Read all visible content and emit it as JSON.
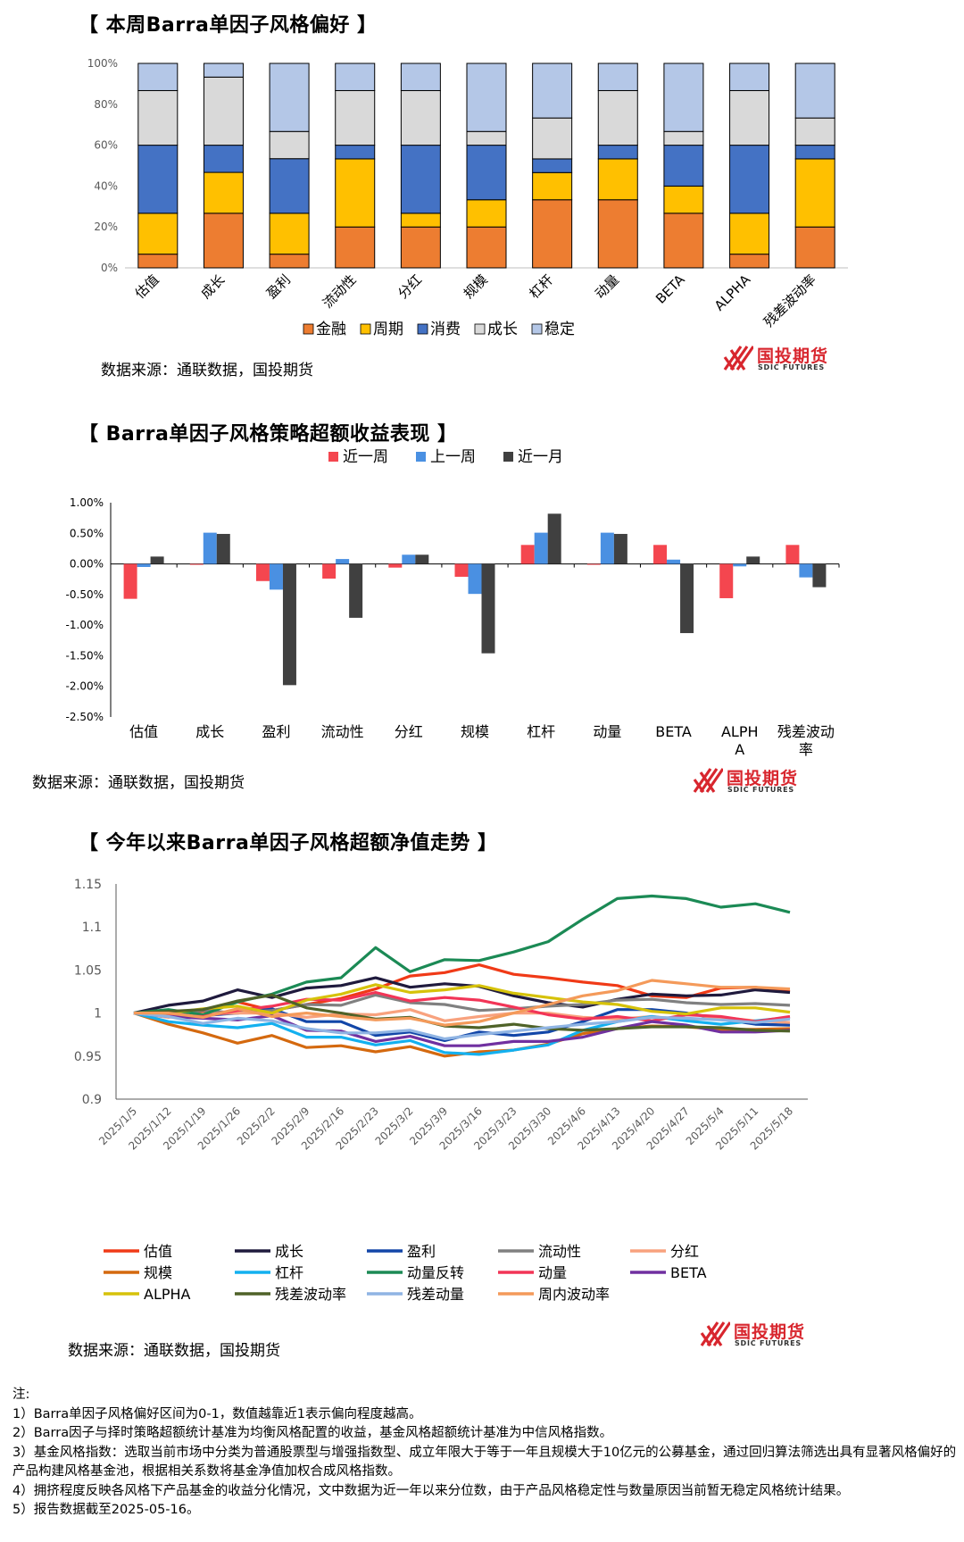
{
  "chart1": {
    "title": "【 本周Barra单因子风格偏好 】",
    "source": "数据来源：通联数据，国投期货",
    "chart_data": {
      "type": "bar",
      "stacked": true,
      "categories": [
        "估值",
        "成长",
        "盈利",
        "流动性",
        "分红",
        "规模",
        "杠杆",
        "动量",
        "BETA",
        "ALPHA",
        "残差波动率"
      ],
      "yticks": [
        "0%",
        "20%",
        "40%",
        "60%",
        "80%",
        "100%"
      ],
      "ylim": [
        0,
        1
      ],
      "legend_position": "bottom",
      "series": [
        {
          "name": "金融",
          "color": "#ed7d31",
          "values": [
            0.067,
            0.267,
            0.067,
            0.2,
            0.2,
            0.2,
            0.333,
            0.333,
            0.267,
            0.067,
            0.2
          ]
        },
        {
          "name": "周期",
          "color": "#ffc000",
          "values": [
            0.2,
            0.2,
            0.2,
            0.333,
            0.067,
            0.133,
            0.133,
            0.2,
            0.133,
            0.2,
            0.333
          ]
        },
        {
          "name": "消费",
          "color": "#4472c4",
          "values": [
            0.333,
            0.133,
            0.267,
            0.067,
            0.333,
            0.267,
            0.067,
            0.067,
            0.2,
            0.333,
            0.067
          ]
        },
        {
          "name": "成长",
          "color": "#d9d9d9",
          "values": [
            0.267,
            0.333,
            0.133,
            0.267,
            0.267,
            0.067,
            0.2,
            0.267,
            0.067,
            0.267,
            0.133
          ]
        },
        {
          "name": "稳定",
          "color": "#b4c7e7",
          "values": [
            0.133,
            0.067,
            0.333,
            0.133,
            0.133,
            0.333,
            0.267,
            0.133,
            0.333,
            0.133,
            0.267
          ]
        }
      ]
    }
  },
  "chart2": {
    "title": "【 Barra单因子风格策略超额收益表现 】",
    "source": "数据来源：通联数据，国投期货",
    "chart_data": {
      "type": "bar",
      "categories": [
        "估值",
        "成长",
        "盈利",
        "流动性",
        "分红",
        "规模",
        "杠杆",
        "动量",
        "BETA",
        "ALPHA",
        "残差波动率"
      ],
      "yticks": [
        "1.00%",
        "0.50%",
        "0.00%",
        "-0.50%",
        "-1.00%",
        "-1.50%",
        "-2.00%",
        "-2.50%"
      ],
      "ylim": [
        -2.5,
        1.0
      ],
      "unit": "%",
      "legend_position": "top",
      "series": [
        {
          "name": "近一周",
          "color": "#f4464f",
          "values": [
            -0.57,
            -0.01,
            -0.28,
            -0.24,
            -0.06,
            -0.21,
            0.31,
            -0.01,
            0.31,
            -0.56,
            0.31
          ]
        },
        {
          "name": "上一周",
          "color": "#4a90e2",
          "values": [
            -0.05,
            0.51,
            -0.42,
            0.08,
            0.15,
            -0.49,
            0.51,
            0.51,
            0.07,
            -0.04,
            -0.22
          ]
        },
        {
          "name": "近一月",
          "color": "#404040",
          "values": [
            0.12,
            0.49,
            -1.98,
            -0.88,
            0.15,
            -1.46,
            0.82,
            0.49,
            -1.13,
            0.12,
            -0.38
          ]
        }
      ]
    }
  },
  "chart3": {
    "title": "【 今年以来Barra单因子风格超额净值走势 】",
    "source": "数据来源：通联数据，国投期货",
    "chart_data": {
      "type": "line",
      "x": [
        "2025/1/5",
        "2025/1/12",
        "2025/1/19",
        "2025/1/26",
        "2025/2/2",
        "2025/2/9",
        "2025/2/16",
        "2025/2/23",
        "2025/3/2",
        "2025/3/9",
        "2025/3/16",
        "2025/3/23",
        "2025/3/30",
        "2025/4/6",
        "2025/4/13",
        "2025/4/20",
        "2025/4/27",
        "2025/5/4",
        "2025/5/11",
        "2025/5/18"
      ],
      "yticks": [
        "1.15",
        "1.1",
        "1.05",
        "1",
        "0.95",
        "0.9"
      ],
      "ylim": [
        0.9,
        1.15
      ],
      "legend_position": "bottom",
      "series": [
        {
          "name": "估值",
          "color": "#f03a17",
          "values": [
            1.0,
            0.996,
            1.0,
            1.013,
            1.003,
            1.01,
            1.017,
            1.028,
            1.043,
            1.047,
            1.056,
            1.045,
            1.041,
            1.036,
            1.032,
            1.02,
            1.018,
            1.029,
            1.03,
            1.025
          ]
        },
        {
          "name": "成长",
          "color": "#1f1a3d",
          "values": [
            1.0,
            1.009,
            1.014,
            1.027,
            1.018,
            1.029,
            1.032,
            1.041,
            1.03,
            1.034,
            1.031,
            1.02,
            1.012,
            1.007,
            1.016,
            1.022,
            1.02,
            1.021,
            1.027,
            1.024
          ]
        },
        {
          "name": "盈利",
          "color": "#1246a8",
          "values": [
            1.0,
            0.999,
            0.997,
            1.0,
            1.005,
            0.99,
            0.99,
            0.974,
            0.978,
            0.968,
            0.978,
            0.974,
            0.978,
            0.99,
            1.004,
            1.004,
            1.0,
            0.993,
            0.987,
            0.986
          ]
        },
        {
          "name": "流动性",
          "color": "#808080",
          "values": [
            1.0,
            0.998,
            1.003,
            1.0,
            1.003,
            1.01,
            1.009,
            1.021,
            1.012,
            1.01,
            1.003,
            1.005,
            1.008,
            1.01,
            1.015,
            1.016,
            1.012,
            1.01,
            1.011,
            1.009
          ]
        },
        {
          "name": "分红",
          "color": "#f8a27e",
          "values": [
            1.0,
            0.995,
            0.999,
            1.0,
            1.0,
            0.995,
            0.999,
            0.998,
            1.004,
            0.991,
            0.996,
            1.0,
            1.0,
            0.995,
            0.993,
            0.996,
            0.992,
            0.995,
            0.991,
            0.989
          ]
        },
        {
          "name": "规模",
          "color": "#d4690f",
          "values": [
            1.0,
            0.987,
            0.977,
            0.965,
            0.974,
            0.96,
            0.962,
            0.955,
            0.961,
            0.95,
            0.955,
            0.957,
            0.964,
            0.976,
            0.982,
            0.985,
            0.984,
            0.981,
            0.981,
            0.982
          ]
        },
        {
          "name": "杠杆",
          "color": "#13b0ef",
          "values": [
            1.0,
            0.99,
            0.986,
            0.983,
            0.988,
            0.972,
            0.972,
            0.963,
            0.968,
            0.954,
            0.952,
            0.957,
            0.963,
            0.98,
            0.99,
            0.996,
            0.991,
            0.987,
            0.991,
            0.995
          ]
        },
        {
          "name": "动量反转",
          "color": "#1b8a55",
          "values": [
            1.0,
            1.004,
            0.998,
            1.013,
            1.022,
            1.036,
            1.041,
            1.076,
            1.048,
            1.062,
            1.061,
            1.071,
            1.083,
            1.109,
            1.133,
            1.136,
            1.133,
            1.123,
            1.127,
            1.117
          ]
        },
        {
          "name": "动量",
          "color": "#f23557",
          "values": [
            1.0,
            0.997,
            0.996,
            1.003,
            1.008,
            1.016,
            1.015,
            1.024,
            1.014,
            1.018,
            1.015,
            1.007,
            0.998,
            0.993,
            0.996,
            0.991,
            0.998,
            0.996,
            0.99,
            0.996
          ]
        },
        {
          "name": "BETA",
          "color": "#7030a0",
          "values": [
            1.0,
            0.996,
            0.994,
            0.992,
            0.997,
            0.98,
            0.979,
            0.967,
            0.973,
            0.962,
            0.962,
            0.967,
            0.967,
            0.972,
            0.982,
            0.99,
            0.986,
            0.978,
            0.978,
            0.98
          ]
        },
        {
          "name": "ALPHA",
          "color": "#d6c20a",
          "values": [
            1.0,
            1.0,
            1.005,
            1.008,
            1.0,
            1.015,
            1.022,
            1.033,
            1.024,
            1.027,
            1.032,
            1.023,
            1.018,
            1.013,
            1.01,
            1.002,
            0.999,
            1.006,
            1.006,
            1.001
          ]
        },
        {
          "name": "残差波动率",
          "color": "#4f6228",
          "values": [
            1.0,
            1.002,
            1.004,
            1.014,
            1.021,
            1.006,
            1.0,
            0.993,
            0.995,
            0.985,
            0.983,
            0.987,
            0.982,
            0.98,
            0.982,
            0.984,
            0.984,
            0.983,
            0.98,
            0.979
          ]
        },
        {
          "name": "残差动量",
          "color": "#8fb4e3",
          "values": [
            1.0,
            0.996,
            0.988,
            0.994,
            0.991,
            0.982,
            0.977,
            0.977,
            0.98,
            0.97,
            0.975,
            0.979,
            0.983,
            0.987,
            0.99,
            0.995,
            0.994,
            0.992,
            0.989,
            0.993
          ]
        },
        {
          "name": "周内波动率",
          "color": "#f49a5a",
          "values": [
            1.0,
            1.0,
            0.995,
            1.005,
            0.996,
            1.0,
            0.996,
            0.992,
            0.994,
            0.986,
            0.99,
            1.0,
            1.01,
            1.02,
            1.026,
            1.038,
            1.034,
            1.03,
            1.03,
            1.028
          ]
        }
      ]
    }
  },
  "logo": {
    "cn": "国投期货",
    "en": "SDIC FUTURES"
  },
  "notes": {
    "header": "注:",
    "n1": "1）Barra单因子风格偏好区间为0-1，数值越靠近1表示偏向程度越高。",
    "n2": "2）Barra因子与择时策略超额统计基准为均衡风格配置的收益，基金风格超额统计基准为中信风格指数。",
    "n3": "3）基金风格指数：选取当前市场中分类为普通股票型与增强指数型、成立年限大于等于一年且规模大于10亿元的公募基金，通过回归算法筛选出具有显著风格偏好的产品构建风格基金池，根据相关系数将基金净值加权合成风格指数。",
    "n4": "4）拥挤程度反映各风格下产品基金的收益分化情况，文中数据为近一年以来分位数，由于产品风格稳定性与数量原因当前暂无稳定风格统计结果。",
    "n5": "5）报告数据截至2025-05-16。"
  }
}
